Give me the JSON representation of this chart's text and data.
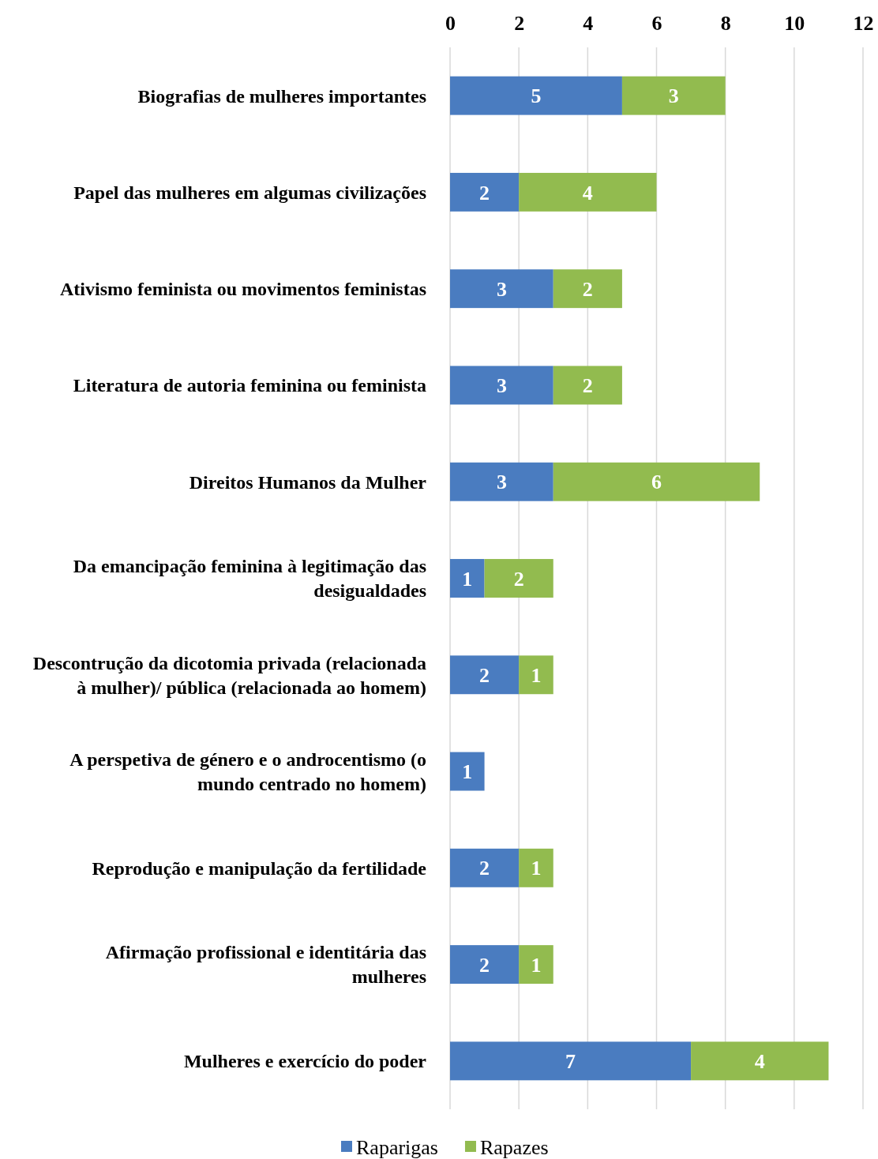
{
  "chart_data": {
    "type": "bar",
    "orientation": "horizontal",
    "stacked": true,
    "data_labels": true,
    "grid": "x",
    "legend": "bottom",
    "categories": [
      "Biografias de mulheres importantes",
      "Papel das mulheres em algumas civilizações",
      "Ativismo feminista ou movimentos feministas",
      "Literatura de autoria feminina ou feminista",
      "Direitos Humanos da Mulher",
      "Da emancipação feminina à legitimação das desigualdades",
      "Descontrução da dicotomia privada (relacionada à mulher)/ pública (relacionada ao homem)",
      "A perspetiva de género e o androcentismo (o mundo centrado no homem)",
      "Reprodução e manipulação da fertilidade",
      "Afirmação profissional e identitária das mulheres",
      "Mulheres e exercício do poder"
    ],
    "series": [
      {
        "name": "Raparigas",
        "color": "#4a7cc0",
        "values": [
          5,
          2,
          3,
          3,
          3,
          1,
          2,
          1,
          2,
          2,
          7
        ]
      },
      {
        "name": "Rapazes",
        "color": "#92bb4f",
        "values": [
          3,
          4,
          2,
          2,
          6,
          2,
          1,
          null,
          1,
          1,
          4
        ]
      }
    ],
    "xlim": [
      0,
      12
    ],
    "xticks": [
      0,
      2,
      4,
      6,
      8,
      10,
      12
    ]
  }
}
